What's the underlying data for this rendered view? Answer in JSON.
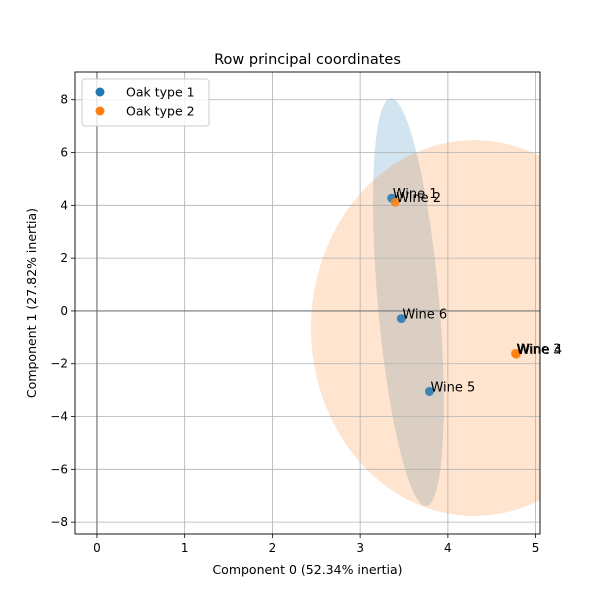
{
  "chart_data": {
    "type": "scatter",
    "title": "Row principal coordinates",
    "xlabel": "Component 0 (52.34% inertia)",
    "ylabel": "Component 1 (27.82% inertia)",
    "xlim": [
      -0.25,
      5.05
    ],
    "ylim": [
      -8.45,
      9.05
    ],
    "xticks": [
      0,
      1,
      2,
      3,
      4,
      5
    ],
    "yticks": [
      -8,
      -6,
      -4,
      -2,
      0,
      2,
      4,
      6,
      8
    ],
    "grid": true,
    "legend_position": "top-left",
    "series": [
      {
        "name": "Oak type 1",
        "color": "#1f77b4",
        "points": [
          {
            "label": "Wine 1",
            "x": 3.36,
            "y": 4.27
          },
          {
            "label": "Wine 5",
            "x": 3.79,
            "y": -3.05
          },
          {
            "label": "Wine 6",
            "x": 3.47,
            "y": -0.29
          }
        ],
        "ellipse": {
          "cx": 3.55,
          "cy": 0.33,
          "rx": 0.35,
          "ry": 7.75,
          "tilt_deg": -5
        }
      },
      {
        "name": "Oak type 2",
        "color": "#ff7f0e",
        "points": [
          {
            "label": "Wine 2",
            "x": 3.4,
            "y": 4.12
          },
          {
            "label": "Wine 3",
            "x": 4.77,
            "y": -1.61
          },
          {
            "label": "Wine 4",
            "x": 4.78,
            "y": -1.64
          }
        ],
        "ellipse": {
          "cx": 4.3,
          "cy": -0.65,
          "rx": 1.86,
          "ry": 7.12,
          "tilt_deg": 0
        }
      }
    ]
  }
}
